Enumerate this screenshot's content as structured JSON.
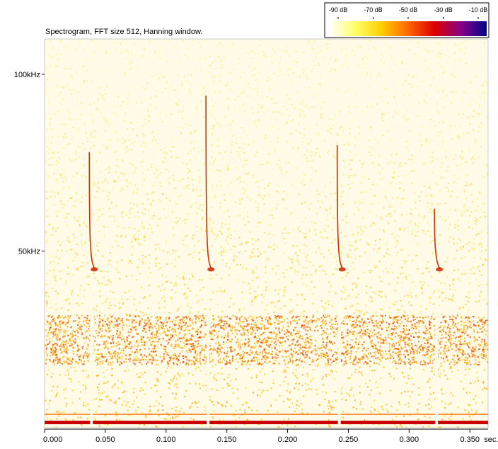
{
  "chart_data": {
    "type": "heatmap",
    "title": "Spectrogram, FFT size 512, Hanning window.",
    "x_unit_label": "sec.",
    "xlim": [
      0,
      0.365
    ],
    "ylim": [
      0,
      110
    ],
    "x_ticks": [
      {
        "value": 0.0,
        "label": "0.000"
      },
      {
        "value": 0.05,
        "label": "0.050"
      },
      {
        "value": 0.1,
        "label": "0.100"
      },
      {
        "value": 0.15,
        "label": "0.150"
      },
      {
        "value": 0.2,
        "label": "0.200"
      },
      {
        "value": 0.25,
        "label": "0.250"
      },
      {
        "value": 0.3,
        "label": "0.300"
      },
      {
        "value": 0.35,
        "label": "0.350"
      }
    ],
    "y_ticks": [
      {
        "value": 50,
        "label": "50kHz"
      },
      {
        "value": 100,
        "label": "100kHz"
      }
    ],
    "colorbar": {
      "labels": [
        "-90 dB",
        "-70 dB",
        "-50 dB",
        "-30 dB",
        "-10 dB"
      ],
      "colors": [
        "#ffffff",
        "#ffff66",
        "#ffcc00",
        "#ff6600",
        "#dd0000",
        "#880088",
        "#000088"
      ]
    },
    "calls": [
      {
        "time_sec": 0.038,
        "start_khz": 78,
        "end_khz": 45
      },
      {
        "time_sec": 0.134,
        "start_khz": 94,
        "end_khz": 45
      },
      {
        "time_sec": 0.242,
        "start_khz": 80,
        "end_khz": 45
      },
      {
        "time_sec": 0.322,
        "start_khz": 62,
        "end_khz": 45
      }
    ],
    "energy_bands_khz": [
      {
        "low": 18,
        "high": 32,
        "level": "strong"
      },
      {
        "low": 1,
        "high": 2,
        "level": "very strong"
      }
    ]
  }
}
